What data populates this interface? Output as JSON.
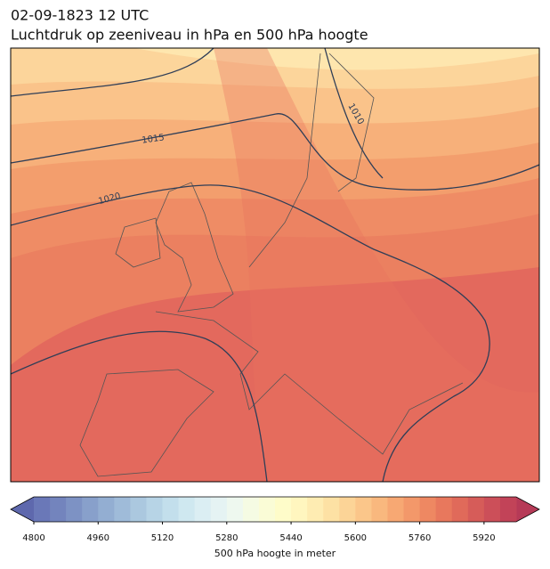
{
  "header": {
    "title": "02-09-1823 12 UTC",
    "subtitle": "Luchtdruk op zeeniveau in hPa en 500 hPa hoogte"
  },
  "map": {
    "contour_labels": [
      "1015",
      "1020",
      "1010"
    ]
  },
  "colorbar": {
    "label": "500 hPa hoogte in meter",
    "lim": [
      4800,
      6000
    ],
    "step": 40,
    "ticks": [
      4800,
      4960,
      5120,
      5280,
      5440,
      5600,
      5760,
      5920
    ],
    "colors": [
      "#6a78b8",
      "#7384bd",
      "#7d92c4",
      "#88a0cb",
      "#93aed2",
      "#9fbbd9",
      "#abc8df",
      "#b7d4e6",
      "#c3dfec",
      "#cfe8f0",
      "#dbeef3",
      "#e5f3f3",
      "#eef8ef",
      "#f5fbe3",
      "#fafcd6",
      "#fefcc9",
      "#fff6bf",
      "#feecb2",
      "#fde1a4",
      "#fcd497",
      "#fbc68a",
      "#f9b87e",
      "#f7a873",
      "#f3986a",
      "#ee8862",
      "#e8785d",
      "#e06a5a",
      "#d65c59",
      "#cc4f59",
      "#c24358"
    ],
    "under": "#5e68ad",
    "over": "#b63a57"
  }
}
